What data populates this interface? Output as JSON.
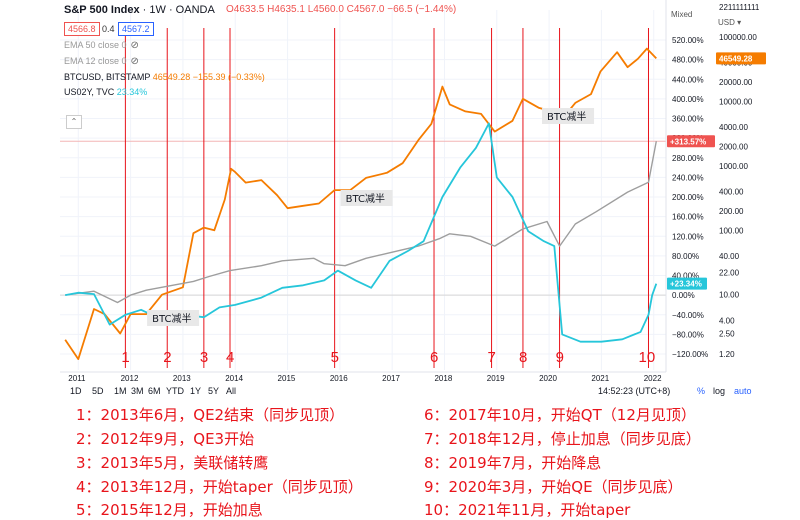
{
  "header": {
    "symbol": "S&P 500 Index",
    "interval_source": " · 1W · OANDA",
    "ohlc": "O4633.5 H4635.1 L4560.0 C4567.0 −66.5 (−1.44%)",
    "sell_price": "4566.8",
    "spread": "0.4",
    "buy_price": "4567.2"
  },
  "legend": {
    "ema50": "EMA 50 close 0",
    "ema12": "EMA 12 close 0",
    "btc_name": "BTCUSD, BITSTAMP",
    "btc_values": "46549.28 −155.39 (−0.33%)",
    "us02y_name": "US02Y, TVC",
    "us02y_value": "23.34%"
  },
  "scale_controls": {
    "mixed": "Mixed",
    "usd": "USD"
  },
  "toolbar": {
    "ranges": [
      "1D",
      "5D",
      "1M",
      "3M",
      "6M",
      "YTD",
      "1Y",
      "5Y",
      "All"
    ],
    "time": "14:52:23 (UTC+8)",
    "percent": "%",
    "log": "log",
    "auto": "auto"
  },
  "annotations": {
    "btc_halving": "BTC减半",
    "event_numbers": [
      "1",
      "2",
      "3",
      "4",
      "5",
      "6",
      "7",
      "8",
      "9",
      "10"
    ]
  },
  "notes": [
    "1：2013年6月，QE2结束（同步见顶）",
    "2：2012年9月，QE3开始",
    "3：2013年5月，美联储转鹰",
    "4：2013年12月，开始taper（同步见顶）",
    "5：2015年12月，开始加息",
    "6：2017年10月，开始QT（12月见顶）",
    "7：2018年12月，停止加息（同步见底）",
    "8：2019年7月，开始降息",
    "9：2020年3月，开始QE（同步见底）",
    "10：2021年11月，开始taper"
  ],
  "chart_data": {
    "type": "line",
    "x_tick_labels": [
      "2011",
      "2012",
      "2013",
      "2014",
      "2015",
      "2016",
      "2017",
      "2018",
      "2019",
      "2020",
      "2021",
      "2022"
    ],
    "y_percent_ticks": [
      "520.00%",
      "480.00%",
      "440.00%",
      "400.00%",
      "360.00%",
      "320.00%",
      "280.00%",
      "240.00%",
      "200.00%",
      "160.00%",
      "120.00%",
      "80.00%",
      "40.00%",
      "0.00%",
      "−40.00%",
      "−80.00%",
      "−120.00%"
    ],
    "y_price_ticks": [
      "100000.00",
      "40000.00",
      "20000.00",
      "10000.00",
      "4000.00",
      "2000.00",
      "1000.00",
      "400.00",
      "200.00",
      "100.00",
      "40.00",
      "22.00",
      "10.00",
      "4.00",
      "2.50",
      "1.20"
    ],
    "top_left_price": "2211111111",
    "last_values": {
      "btc_price_label": "46549.28",
      "spx_pct_label": "+313.57%",
      "us02y_pct_label": "+23.34%"
    },
    "vertical_event_lines": [
      {
        "label": "1",
        "date": "2011.9"
      },
      {
        "label": "2",
        "date": "2012.7"
      },
      {
        "label": "3",
        "date": "2013.4"
      },
      {
        "label": "4",
        "date": "2013.9"
      },
      {
        "label": "5",
        "date": "2015.9"
      },
      {
        "label": "6",
        "date": "2017.8"
      },
      {
        "label": "7",
        "date": "2018.9"
      },
      {
        "label": "8",
        "date": "2019.5"
      },
      {
        "label": "9",
        "date": "2020.2"
      },
      {
        "label": "10",
        "date": "2021.9"
      }
    ],
    "series": [
      {
        "name": "BTCUSD",
        "color": "#f57c00",
        "points": [
          [
            2010.75,
            2
          ],
          [
            2011.0,
            1
          ],
          [
            2011.3,
            6
          ],
          [
            2011.5,
            5
          ],
          [
            2011.8,
            2.5
          ],
          [
            2012.0,
            5
          ],
          [
            2012.3,
            5
          ],
          [
            2012.6,
            10
          ],
          [
            2013.0,
            13
          ],
          [
            2013.2,
            90
          ],
          [
            2013.4,
            110
          ],
          [
            2013.6,
            100
          ],
          [
            2013.8,
            300
          ],
          [
            2013.92,
            900
          ],
          [
            2014.0,
            800
          ],
          [
            2014.2,
            550
          ],
          [
            2014.5,
            600
          ],
          [
            2014.8,
            350
          ],
          [
            2015.0,
            220
          ],
          [
            2015.3,
            240
          ],
          [
            2015.6,
            260
          ],
          [
            2015.9,
            420
          ],
          [
            2016.2,
            420
          ],
          [
            2016.5,
            650
          ],
          [
            2016.9,
            780
          ],
          [
            2017.2,
            1100
          ],
          [
            2017.5,
            2500
          ],
          [
            2017.75,
            4500
          ],
          [
            2017.96,
            17000
          ],
          [
            2018.1,
            9000
          ],
          [
            2018.4,
            7000
          ],
          [
            2018.7,
            6400
          ],
          [
            2018.96,
            3400
          ],
          [
            2019.3,
            5000
          ],
          [
            2019.5,
            11000
          ],
          [
            2019.8,
            8000
          ],
          [
            2020.0,
            7200
          ],
          [
            2020.2,
            4800
          ],
          [
            2020.5,
            9500
          ],
          [
            2020.8,
            13000
          ],
          [
            2020.98,
            29000
          ],
          [
            2021.3,
            58000
          ],
          [
            2021.5,
            34000
          ],
          [
            2021.7,
            46000
          ],
          [
            2021.87,
            66000
          ],
          [
            2022.05,
            46549
          ]
        ]
      },
      {
        "name": "SPX",
        "color": "#9e9e9e",
        "points": [
          [
            2010.75,
            0
          ],
          [
            2011.3,
            8
          ],
          [
            2011.75,
            -15
          ],
          [
            2012.0,
            0
          ],
          [
            2012.3,
            10
          ],
          [
            2012.8,
            20
          ],
          [
            2013.2,
            28
          ],
          [
            2013.5,
            38
          ],
          [
            2013.9,
            50
          ],
          [
            2014.5,
            60
          ],
          [
            2014.9,
            70
          ],
          [
            2015.5,
            75
          ],
          [
            2015.7,
            64
          ],
          [
            2016.1,
            60
          ],
          [
            2016.5,
            75
          ],
          [
            2016.9,
            85
          ],
          [
            2017.5,
            100
          ],
          [
            2017.9,
            115
          ],
          [
            2018.1,
            125
          ],
          [
            2018.5,
            120
          ],
          [
            2018.96,
            100
          ],
          [
            2019.5,
            135
          ],
          [
            2019.96,
            150
          ],
          [
            2020.2,
            100
          ],
          [
            2020.5,
            145
          ],
          [
            2020.9,
            170
          ],
          [
            2021.5,
            210
          ],
          [
            2021.9,
            230
          ],
          [
            2022.05,
            313.57
          ]
        ]
      },
      {
        "name": "US02Y",
        "color": "#26c6da",
        "points": [
          [
            2010.75,
            0
          ],
          [
            2011.0,
            5
          ],
          [
            2011.3,
            2
          ],
          [
            2011.6,
            -60
          ],
          [
            2011.9,
            -40
          ],
          [
            2012.2,
            -30
          ],
          [
            2012.6,
            -50
          ],
          [
            2013.0,
            -40
          ],
          [
            2013.4,
            -45
          ],
          [
            2013.7,
            -25
          ],
          [
            2014.0,
            -20
          ],
          [
            2014.5,
            -5
          ],
          [
            2014.9,
            15
          ],
          [
            2015.3,
            20
          ],
          [
            2015.7,
            30
          ],
          [
            2015.96,
            50
          ],
          [
            2016.3,
            30
          ],
          [
            2016.6,
            15
          ],
          [
            2016.95,
            70
          ],
          [
            2017.3,
            90
          ],
          [
            2017.6,
            110
          ],
          [
            2017.96,
            200
          ],
          [
            2018.3,
            260
          ],
          [
            2018.6,
            300
          ],
          [
            2018.85,
            350
          ],
          [
            2019.0,
            240
          ],
          [
            2019.3,
            200
          ],
          [
            2019.6,
            130
          ],
          [
            2019.9,
            110
          ],
          [
            2020.1,
            100
          ],
          [
            2020.25,
            -80
          ],
          [
            2020.6,
            -95
          ],
          [
            2021.0,
            -95
          ],
          [
            2021.4,
            -90
          ],
          [
            2021.75,
            -75
          ],
          [
            2021.9,
            -40
          ],
          [
            2021.97,
            0
          ],
          [
            2022.05,
            23.34
          ]
        ]
      }
    ],
    "reference_level": {
      "type": "horizontal_line",
      "value_pct": 313.57
    },
    "scale": "mixed (percent left labels, log price labels)"
  }
}
